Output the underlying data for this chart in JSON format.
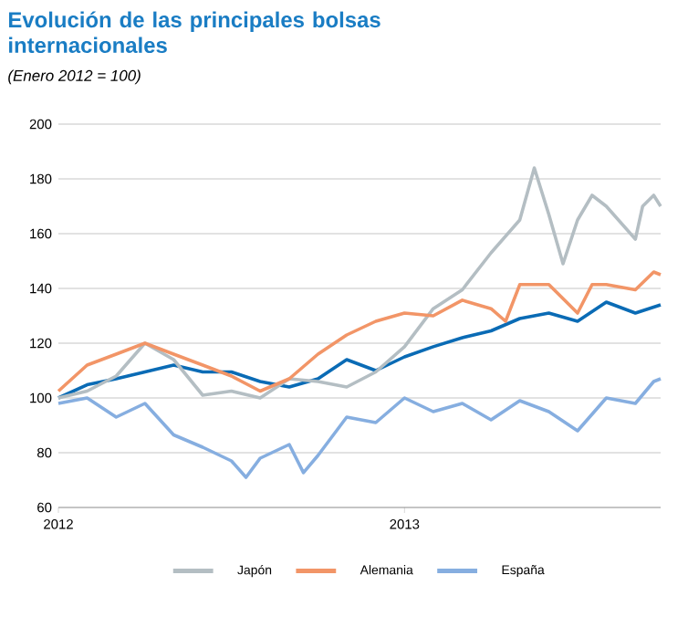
{
  "chart_data": {
    "type": "line",
    "title": "Evolución de las principales bolsas internacionales",
    "subtitle": "(Enero 2012 = 100)",
    "xlim": [
      2012,
      2013.74
    ],
    "xticks": [
      2012,
      2013
    ],
    "ylim": [
      60,
      200
    ],
    "yticks": [
      60,
      80,
      100,
      120,
      140,
      160,
      180,
      200
    ],
    "grid": "y",
    "legend": "bottom",
    "line_style": "solid",
    "marker": "none",
    "series": [
      {
        "color": "#0a6bb5",
        "x": [
          2012,
          2012.083,
          2012.167,
          2012.25,
          2012.333,
          2012.417,
          2012.5,
          2012.583,
          2012.667,
          2012.75,
          2012.833,
          2012.917,
          2013,
          2013.083,
          2013.167,
          2013.25,
          2013.333,
          2013.417,
          2013.5,
          2013.583,
          2013.667,
          2013.74
        ],
        "values": [
          100,
          104.8,
          107,
          109.5,
          112,
          109.5,
          109.5,
          106,
          104,
          107,
          114,
          110,
          115,
          118.7,
          122,
          124.5,
          129,
          131,
          128,
          135,
          131,
          134
        ]
      },
      {
        "name": "Japón",
        "color": "#b4bec3",
        "x": [
          2012,
          2012.083,
          2012.167,
          2012.25,
          2012.333,
          2012.417,
          2012.5,
          2012.583,
          2012.667,
          2012.75,
          2012.833,
          2012.917,
          2013,
          2013.083,
          2013.167,
          2013.25,
          2013.333,
          2013.375,
          2013.417,
          2013.458,
          2013.5,
          2013.542,
          2013.583,
          2013.667,
          2013.688,
          2013.72,
          2013.74
        ],
        "values": [
          100,
          102.5,
          108,
          120,
          114,
          101,
          102.5,
          100,
          107,
          106,
          104,
          109.5,
          118.7,
          132.6,
          139.5,
          153,
          165,
          184,
          167,
          149,
          165,
          174,
          170,
          158,
          170,
          174,
          170
        ]
      },
      {
        "name": "Alemania",
        "color": "#f29567",
        "x": [
          2012,
          2012.083,
          2012.167,
          2012.25,
          2012.333,
          2012.417,
          2012.5,
          2012.583,
          2012.667,
          2012.75,
          2012.833,
          2012.917,
          2013,
          2013.083,
          2013.167,
          2013.25,
          2013.292,
          2013.333,
          2013.417,
          2013.5,
          2013.542,
          2013.583,
          2013.667,
          2013.72,
          2013.74
        ],
        "values": [
          102.5,
          112,
          116,
          120,
          116,
          112,
          108,
          102.5,
          107,
          116,
          123,
          128,
          131,
          130,
          135.7,
          132.6,
          128,
          141.4,
          141.4,
          131,
          141.4,
          141.4,
          139.5,
          146,
          145
        ]
      },
      {
        "name": "España",
        "color": "#86aee0",
        "x": [
          2012,
          2012.083,
          2012.167,
          2012.25,
          2012.333,
          2012.417,
          2012.5,
          2012.542,
          2012.583,
          2012.667,
          2012.708,
          2012.75,
          2012.833,
          2012.917,
          2013,
          2013.083,
          2013.167,
          2013.25,
          2013.333,
          2013.417,
          2013.5,
          2013.583,
          2013.667,
          2013.72,
          2013.74
        ],
        "values": [
          98,
          100,
          93,
          98,
          86.5,
          82,
          77,
          71,
          78,
          83,
          72.7,
          79,
          93,
          91,
          100,
          95,
          98,
          92,
          99,
          95,
          88,
          100,
          98,
          106,
          107
        ]
      }
    ]
  }
}
